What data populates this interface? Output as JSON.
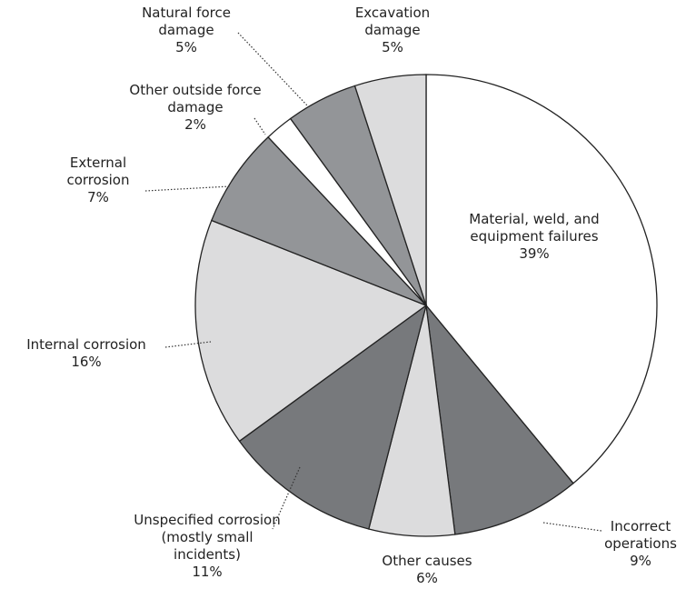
{
  "chart_data": {
    "type": "pie",
    "categories": [
      "Material, weld, and equipment failures",
      "Incorrect operations",
      "Other causes",
      "Unspecified corrosion (mostly small incidents)",
      "Internal corrosion",
      "External corrosion",
      "Other outside force damage",
      "Natural force damage",
      "Excavation damage"
    ],
    "values": [
      39,
      9,
      6,
      11,
      16,
      7,
      2,
      5,
      5
    ],
    "value_labels": [
      "39%",
      "9%",
      "6%",
      "11%",
      "16%",
      "7%",
      "2%",
      "5%",
      "5%"
    ],
    "colors": [
      "#ffffff",
      "#77797c",
      "#dcdcdd",
      "#77797c",
      "#dcdcdd",
      "#939598",
      "#ffffff",
      "#939598",
      "#dcdcdd"
    ]
  }
}
